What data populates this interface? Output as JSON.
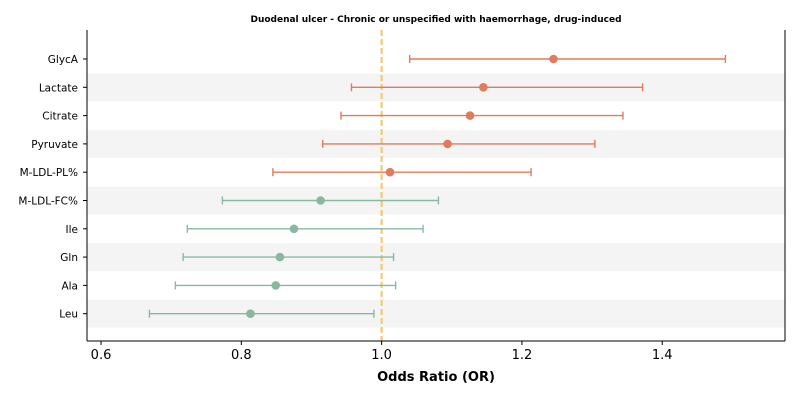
{
  "chart_data": {
    "type": "forest",
    "title": "Duodenal ulcer - Chronic or unspecified with haemorrhage, drug-induced",
    "xlabel": "Odds Ratio (OR)",
    "xlim": [
      0.58,
      1.575
    ],
    "xticks": [
      "0.6",
      "0.8",
      "1.0",
      "1.2",
      "1.4"
    ],
    "reference_line": 1.0,
    "colors": {
      "increased": "#e07b5f",
      "decreased": "#88b9a0",
      "reference": "#f2c978",
      "band": "#f4f4f4"
    },
    "rows": [
      {
        "label": "GlycA",
        "or": 1.245,
        "lo": 1.04,
        "hi": 1.49
      },
      {
        "label": "Lactate",
        "or": 1.145,
        "lo": 0.957,
        "hi": 1.372
      },
      {
        "label": "Citrate",
        "or": 1.126,
        "lo": 0.942,
        "hi": 1.344
      },
      {
        "label": "Pyruvate",
        "or": 1.094,
        "lo": 0.916,
        "hi": 1.304
      },
      {
        "label": "M-LDL-PL%",
        "or": 1.012,
        "lo": 0.845,
        "hi": 1.213
      },
      {
        "label": "M-LDL-FC%",
        "or": 0.913,
        "lo": 0.773,
        "hi": 1.081
      },
      {
        "label": "Ile",
        "or": 0.875,
        "lo": 0.723,
        "hi": 1.059
      },
      {
        "label": "Gln",
        "or": 0.855,
        "lo": 0.717,
        "hi": 1.017
      },
      {
        "label": "Ala",
        "or": 0.849,
        "lo": 0.706,
        "hi": 1.02
      },
      {
        "label": "Leu",
        "or": 0.813,
        "lo": 0.669,
        "hi": 0.989
      }
    ]
  }
}
